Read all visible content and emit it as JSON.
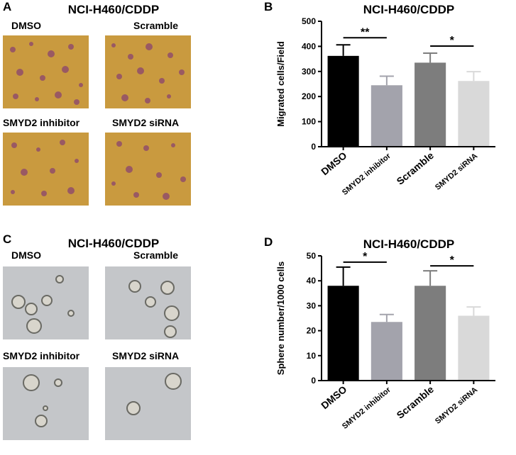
{
  "panels": {
    "A": {
      "letter": "A",
      "title": "NCI-H460/CDDP",
      "images": [
        "DMSO",
        "Scramble",
        "SMYD2 inhibitor",
        "SMYD2 siRNA"
      ]
    },
    "C": {
      "letter": "C",
      "title": "NCI-H460/CDDP",
      "images": [
        "DMSO",
        "Scramble",
        "SMYD2 inhibitor",
        "SMYD2 siRNA"
      ]
    },
    "B": {
      "letter": "B"
    },
    "D": {
      "letter": "D"
    }
  },
  "chart_data": [
    {
      "type": "bar",
      "title": "NCI-H460/CDDP",
      "ylabel": "Migrated cells/Field",
      "categories": [
        "DMSO",
        "SMYD2 inhibitor",
        "Scramble",
        "SMYD2 siRNA"
      ],
      "values": [
        362,
        245,
        335,
        262
      ],
      "errors": [
        44,
        36,
        38,
        37
      ],
      "ylim": [
        0,
        500
      ],
      "yticks": [
        0,
        100,
        200,
        300,
        400,
        500
      ],
      "colors": [
        "#000000",
        "#a3a3ac",
        "#7d7d7d",
        "#d9d9d9"
      ],
      "significance": [
        {
          "from": 0,
          "to": 1,
          "label": "**"
        },
        {
          "from": 2,
          "to": 3,
          "label": "*"
        }
      ]
    },
    {
      "type": "bar",
      "title": "NCI-H460/CDDP",
      "ylabel": "Sphere number/1000 cells",
      "categories": [
        "DMSO",
        "SMYD2 inhibitor",
        "Scramble",
        "SMYD2 siRNA"
      ],
      "values": [
        38,
        23.5,
        38,
        26
      ],
      "errors": [
        7.5,
        3,
        6,
        3.5
      ],
      "ylim": [
        0,
        50
      ],
      "yticks": [
        0,
        10,
        20,
        30,
        40,
        50
      ],
      "colors": [
        "#000000",
        "#a3a3ac",
        "#7d7d7d",
        "#d9d9d9"
      ],
      "significance": [
        {
          "from": 0,
          "to": 1,
          "label": "*"
        },
        {
          "from": 2,
          "to": 3,
          "label": "*"
        }
      ]
    }
  ]
}
